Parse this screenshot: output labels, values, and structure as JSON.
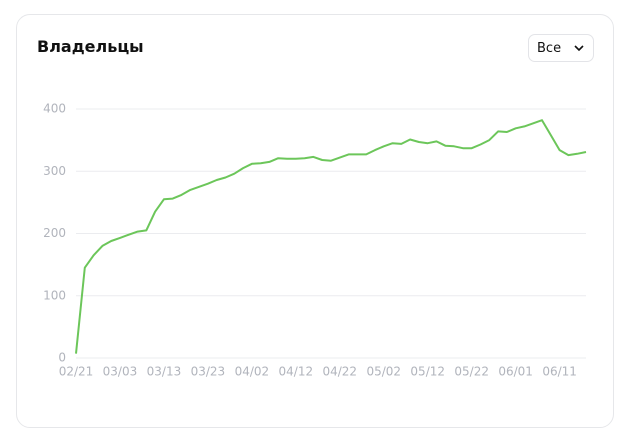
{
  "filter": "Все",
  "chart_data": {
    "type": "line",
    "title": "Владельцы",
    "categories": [
      "02/21",
      null,
      null,
      null,
      null,
      "03/03",
      null,
      null,
      null,
      null,
      "03/13",
      null,
      null,
      null,
      null,
      "03/23",
      null,
      null,
      null,
      null,
      "04/02",
      null,
      null,
      null,
      null,
      "04/12",
      null,
      null,
      null,
      null,
      "04/22",
      null,
      null,
      null,
      null,
      "05/02",
      null,
      null,
      null,
      null,
      "05/12",
      null,
      null,
      null,
      null,
      "05/22",
      null,
      null,
      null,
      null,
      "06/01",
      null,
      null,
      null,
      null,
      "06/11",
      null,
      null,
      null
    ],
    "series": [
      {
        "color": "#6cc65a",
        "values": [
          7,
          145,
          165,
          180,
          188,
          193,
          198,
          203,
          205,
          235,
          255,
          256,
          262,
          270,
          275,
          280,
          286,
          290,
          296,
          305,
          312,
          313,
          315,
          321,
          320,
          320,
          321,
          323,
          318,
          317,
          322,
          327,
          327,
          327,
          334,
          340,
          345,
          344,
          351,
          347,
          345,
          348,
          341,
          340,
          337,
          337,
          343,
          350,
          364,
          363,
          369,
          372,
          377,
          382,
          358,
          334,
          326,
          328,
          331
        ]
      }
    ],
    "ylim": [
      0,
      400
    ],
    "yticks": [
      0,
      100,
      200,
      300,
      400
    ],
    "grid": true
  }
}
